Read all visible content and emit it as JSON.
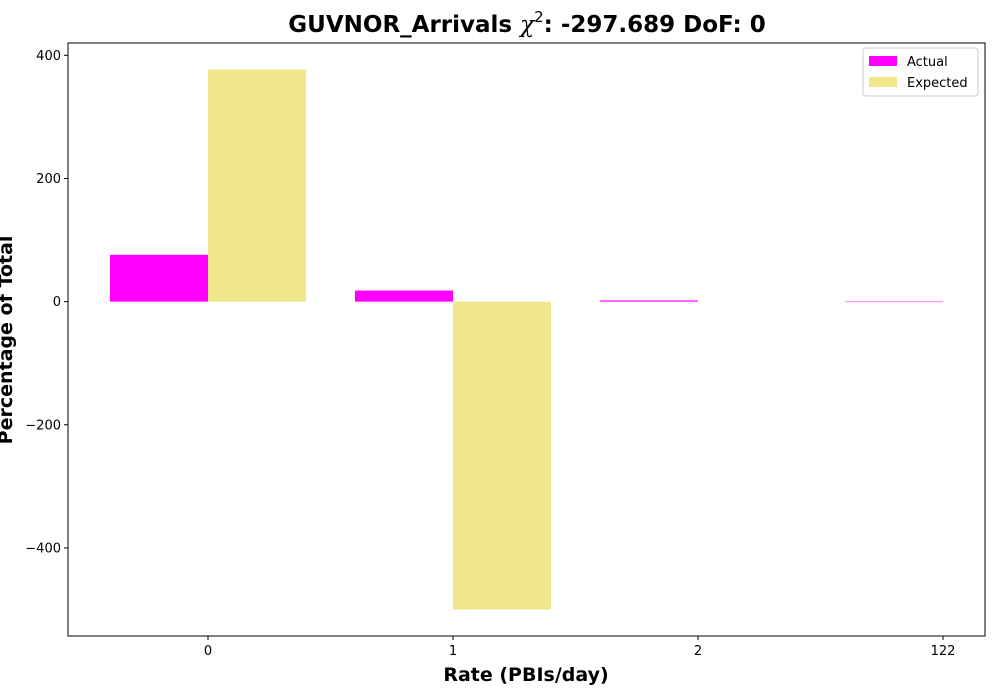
{
  "chart_data": {
    "type": "bar",
    "title_prefix": "GUVNOR_Arrivals ",
    "title_symbol": "χ",
    "title_superscript": "2",
    "title_suffix": ": -297.689 DoF: 0",
    "xlabel": "Rate (PBIs/day)",
    "ylabel": "Percentage of Total",
    "categories": [
      "0",
      "1",
      "2",
      "122"
    ],
    "series": [
      {
        "name": "Actual",
        "color": "#ff00ff",
        "values": [
          76,
          18,
          2,
          0
        ]
      },
      {
        "name": "Expected",
        "color": "#f0e68c",
        "values": [
          377,
          -500,
          null,
          null
        ]
      }
    ],
    "ylim": [
      -543,
      420
    ],
    "yticks": [
      400,
      200,
      0,
      -200,
      -400
    ],
    "ytick_labels": [
      "400",
      "200",
      "0",
      "−200",
      "−400"
    ],
    "legend_position": "top-right",
    "grid": false
  }
}
